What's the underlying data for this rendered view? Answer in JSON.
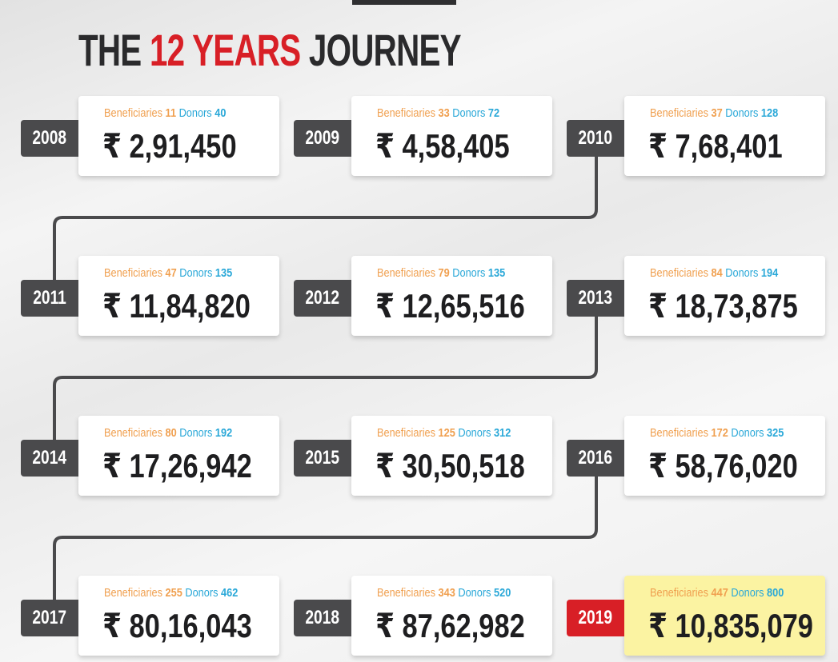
{
  "header": {
    "title_parts": [
      "THE",
      "12 YEARS",
      "JOURNEY"
    ]
  },
  "labels": {
    "beneficiaries": "Beneficiaries",
    "donors": "Donors"
  },
  "items": [
    {
      "year": "2008",
      "beneficiaries": 11,
      "donors": 40,
      "amount": "₹ 2,91,450"
    },
    {
      "year": "2009",
      "beneficiaries": 33,
      "donors": 72,
      "amount": "₹ 4,58,405"
    },
    {
      "year": "2010",
      "beneficiaries": 37,
      "donors": 128,
      "amount": "₹ 7,68,401"
    },
    {
      "year": "2011",
      "beneficiaries": 47,
      "donors": 135,
      "amount": "₹ 11,84,820"
    },
    {
      "year": "2012",
      "beneficiaries": 79,
      "donors": 135,
      "amount": "₹ 12,65,516"
    },
    {
      "year": "2013",
      "beneficiaries": 84,
      "donors": 194,
      "amount": "₹ 18,73,875"
    },
    {
      "year": "2014",
      "beneficiaries": 80,
      "donors": 192,
      "amount": "₹ 17,26,942"
    },
    {
      "year": "2015",
      "beneficiaries": 125,
      "donors": 312,
      "amount": "₹ 30,50,518"
    },
    {
      "year": "2016",
      "beneficiaries": 172,
      "donors": 325,
      "amount": "₹ 58,76,020"
    },
    {
      "year": "2017",
      "beneficiaries": 255,
      "donors": 462,
      "amount": "₹ 80,16,043"
    },
    {
      "year": "2018",
      "beneficiaries": 343,
      "donors": 520,
      "amount": "₹ 87,62,982"
    },
    {
      "year": "2019",
      "beneficiaries": 447,
      "donors": 800,
      "amount": "₹ 10,835,079"
    }
  ]
}
